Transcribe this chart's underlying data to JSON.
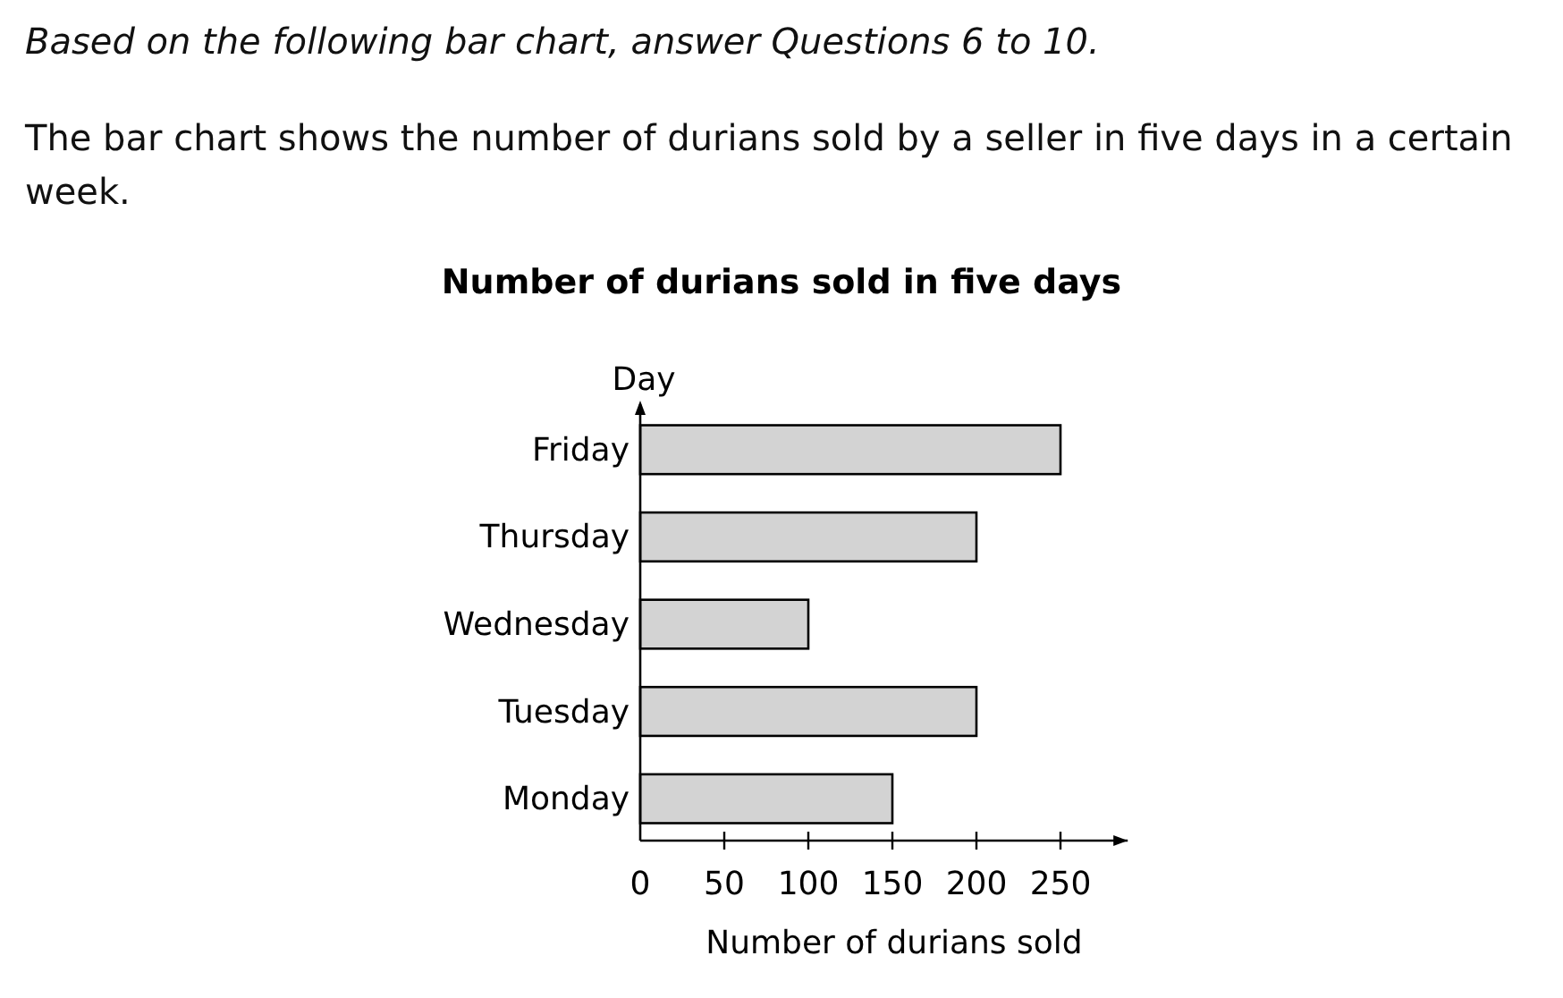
{
  "chart_data": {
    "type": "bar",
    "orientation": "horizontal",
    "title": "Number of durians sold in five days",
    "annotations": [
      "Based on the following bar chart, answer Questions 6 to 10.",
      "The bar chart shows the number of durians sold by a seller in five days in a certain week."
    ],
    "xlabel": "Number of durians sold",
    "ylabel": "Day",
    "categories": [
      "Friday",
      "Thursday",
      "Wednesday",
      "Tuesday",
      "Monday"
    ],
    "values": [
      250,
      200,
      100,
      200,
      150
    ],
    "color": "#d3d3d3",
    "xlim": [
      0,
      290
    ],
    "xticks": [
      0,
      50,
      100,
      150,
      200,
      250
    ],
    "grid": false
  }
}
